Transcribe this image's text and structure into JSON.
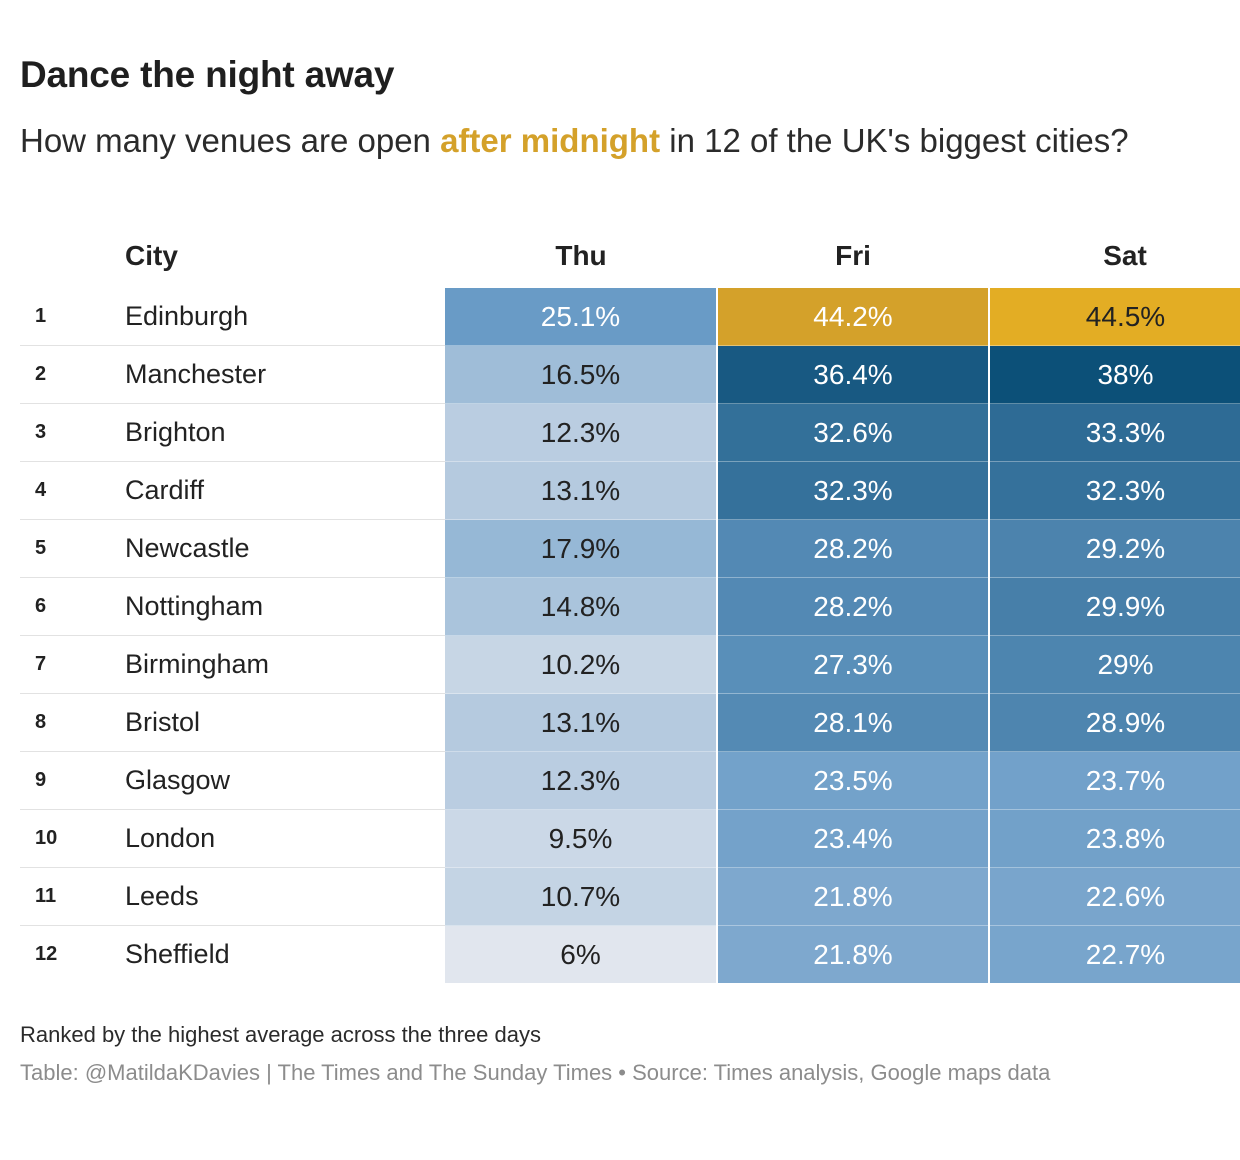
{
  "header": {
    "title": "Dance the night away",
    "subtitle_before": "How many venues are open ",
    "subtitle_highlight": "after midnight",
    "subtitle_after": " in 12 of the UK's biggest cities?",
    "highlight_color": "#d4a12a"
  },
  "footer": {
    "note": "Ranked by the highest average across the three days",
    "credit": "Table: @MatildaKDavies | The Times and The Sunday Times • Source: Times analysis, Google maps data"
  },
  "chart_data": {
    "type": "table",
    "title": "Dance the night away",
    "subtitle": "How many venues are open after midnight in 12 of the UK's biggest cities?",
    "columns": [
      "City",
      "Thu",
      "Fri",
      "Sat"
    ],
    "colors": {
      "low": "#e1e6ee",
      "mid": "#6a9cc7",
      "high": "#0c5078",
      "top": "#e3ad24",
      "top_alt": "#d4a12a",
      "dark_text": "#222222",
      "light_text": "#ffffff"
    },
    "rows": [
      {
        "rank": "1",
        "city": "Edinburgh",
        "thu": 25.1,
        "fri": 44.2,
        "sat": 44.5,
        "thu_label": "25.1%",
        "fri_label": "44.2%",
        "sat_label": "44.5%"
      },
      {
        "rank": "2",
        "city": "Manchester",
        "thu": 16.5,
        "fri": 36.4,
        "sat": 38,
        "thu_label": "16.5%",
        "fri_label": "36.4%",
        "sat_label": "38%"
      },
      {
        "rank": "3",
        "city": "Brighton",
        "thu": 12.3,
        "fri": 32.6,
        "sat": 33.3,
        "thu_label": "12.3%",
        "fri_label": "32.6%",
        "sat_label": "33.3%"
      },
      {
        "rank": "4",
        "city": "Cardiff",
        "thu": 13.1,
        "fri": 32.3,
        "sat": 32.3,
        "thu_label": "13.1%",
        "fri_label": "32.3%",
        "sat_label": "32.3%"
      },
      {
        "rank": "5",
        "city": "Newcastle",
        "thu": 17.9,
        "fri": 28.2,
        "sat": 29.2,
        "thu_label": "17.9%",
        "fri_label": "28.2%",
        "sat_label": "29.2%"
      },
      {
        "rank": "6",
        "city": "Nottingham",
        "thu": 14.8,
        "fri": 28.2,
        "sat": 29.9,
        "thu_label": "14.8%",
        "fri_label": "28.2%",
        "sat_label": "29.9%"
      },
      {
        "rank": "7",
        "city": "Birmingham",
        "thu": 10.2,
        "fri": 27.3,
        "sat": 29,
        "thu_label": "10.2%",
        "fri_label": "27.3%",
        "sat_label": "29%"
      },
      {
        "rank": "8",
        "city": "Bristol",
        "thu": 13.1,
        "fri": 28.1,
        "sat": 28.9,
        "thu_label": "13.1%",
        "fri_label": "28.1%",
        "sat_label": "28.9%"
      },
      {
        "rank": "9",
        "city": "Glasgow",
        "thu": 12.3,
        "fri": 23.5,
        "sat": 23.7,
        "thu_label": "12.3%",
        "fri_label": "23.5%",
        "sat_label": "23.7%"
      },
      {
        "rank": "10",
        "city": "London",
        "thu": 9.5,
        "fri": 23.4,
        "sat": 23.8,
        "thu_label": "9.5%",
        "fri_label": "23.4%",
        "sat_label": "23.8%"
      },
      {
        "rank": "11",
        "city": "Leeds",
        "thu": 10.7,
        "fri": 21.8,
        "sat": 22.6,
        "thu_label": "10.7%",
        "fri_label": "21.8%",
        "sat_label": "22.6%"
      },
      {
        "rank": "12",
        "city": "Sheffield",
        "thu": 6,
        "fri": 21.8,
        "sat": 22.7,
        "thu_label": "6%",
        "fri_label": "21.8%",
        "sat_label": "22.7%"
      }
    ]
  }
}
